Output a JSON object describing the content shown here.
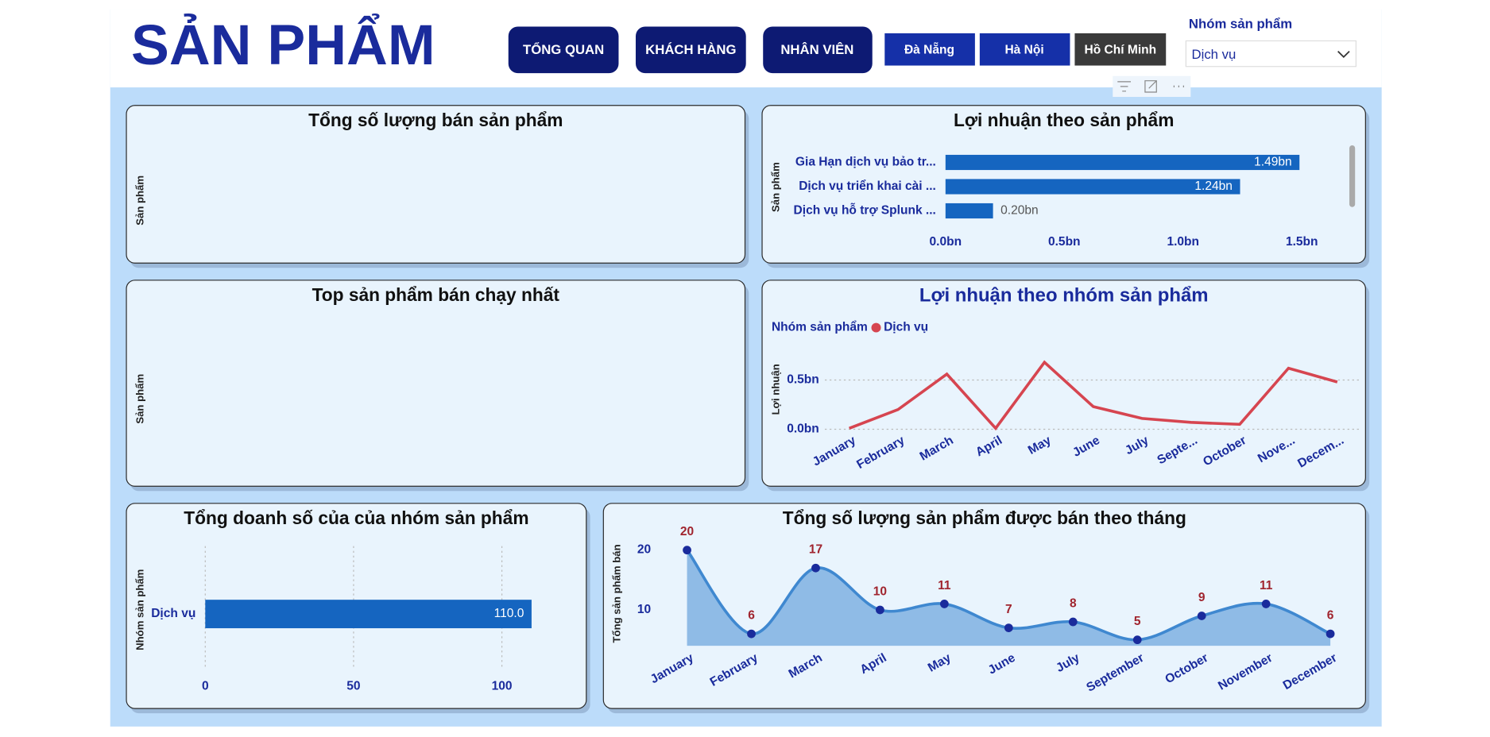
{
  "header": {
    "title": "SẢN PHẨM",
    "nav": [
      "TỔNG QUAN",
      "KHÁCH HÀNG",
      "NHÂN VIÊN"
    ],
    "cities": [
      "Đà Nẵng",
      "Hà Nội",
      "Hồ Chí Minh"
    ]
  },
  "slicer": {
    "label": "Nhóm sản phẩm",
    "value": "Dịch vụ"
  },
  "chart_data": [
    {
      "type": "blank",
      "title": "Tổng số lượng bán sản phẩm",
      "y_label": "Sản phẩm"
    },
    {
      "type": "hbar",
      "title": "Lợi nhuận theo sản phẩm",
      "y_label": "Sản phẩm",
      "categories": [
        "Gia Hạn dịch vụ bảo tr...",
        "Dịch vụ triển khai cài ...",
        "Dịch vụ hỗ trợ Splunk ..."
      ],
      "values": [
        1.49,
        1.24,
        0.2
      ],
      "value_labels": [
        "1.49bn",
        "1.24bn",
        "0.20bn"
      ],
      "color": "#1565c0",
      "xlim": [
        0,
        1.6
      ],
      "xticks": [
        {
          "value": 0,
          "label": "0.0bn"
        },
        {
          "value": 0.5,
          "label": "0.5bn"
        },
        {
          "value": 1,
          "label": "1.0bn"
        },
        {
          "value": 1.5,
          "label": "1.5bn"
        }
      ],
      "grid": false
    },
    {
      "type": "blank",
      "title": "Top sản phẩm bán chạy nhất",
      "y_label": "Sản phẩm"
    },
    {
      "type": "line",
      "title": "Lợi nhuận theo nhóm sản phẩm",
      "legend_title": "Nhóm sản phẩm",
      "y_label": "Lợi nhuận",
      "categories": [
        "January",
        "February",
        "March",
        "April",
        "May",
        "June",
        "July",
        "Septe...",
        "October",
        "Nove...",
        "Decem..."
      ],
      "series": [
        {
          "name": "Dịch vụ",
          "color": "#d64550",
          "values": [
            0.01,
            0.2,
            0.56,
            0.01,
            0.68,
            0.23,
            0.11,
            0.07,
            0.05,
            0.62,
            0.48
          ]
        }
      ],
      "ylim": [
        0,
        0.8
      ],
      "yticks": [
        {
          "value": 0,
          "label": "0.0bn"
        },
        {
          "value": 0.5,
          "label": "0.5bn"
        }
      ],
      "grid": true
    },
    {
      "type": "hbar",
      "title": "Tổng doanh số của của nhóm sản phẩm",
      "y_label": "Nhóm sản phẩm",
      "categories": [
        "Dịch vụ"
      ],
      "values": [
        110
      ],
      "value_labels": [
        "110.0"
      ],
      "color": "#1565c0",
      "xlim": [
        0,
        115
      ],
      "xticks": [
        0,
        50,
        100
      ],
      "grid": true
    },
    {
      "type": "area",
      "title": "Tổng số lượng sản phẩm được bán theo tháng",
      "y_label": "Tổng sản phẩm bán",
      "categories": [
        "January",
        "February",
        "March",
        "April",
        "May",
        "June",
        "July",
        "September",
        "October",
        "November",
        "December"
      ],
      "values": [
        20,
        6,
        17,
        10,
        11,
        7,
        8,
        5,
        9,
        11,
        6
      ],
      "color": "#3f88d0",
      "ylim": [
        4,
        22
      ],
      "yticks": [
        10,
        20
      ],
      "grid": false
    }
  ]
}
